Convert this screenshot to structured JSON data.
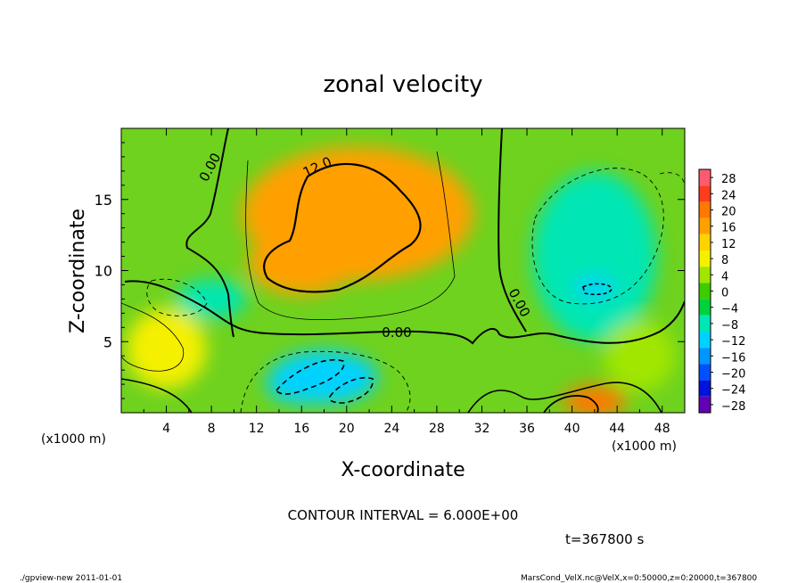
{
  "chart_data": {
    "type": "heatmap",
    "title": "zonal velocity",
    "xlabel": "X-coordinate",
    "ylabel": "Z-coordinate",
    "x_unit_label": "(x1000 m)",
    "x_unit_label_right": "(x1000 m)",
    "xlim": [
      0,
      50
    ],
    "ylim": [
      0,
      20
    ],
    "x_ticks": [
      "4",
      "8",
      "12",
      "16",
      "20",
      "24",
      "28",
      "32",
      "36",
      "40",
      "44",
      "48"
    ],
    "x_tick_values": [
      4,
      8,
      12,
      16,
      20,
      24,
      28,
      32,
      36,
      40,
      44,
      48
    ],
    "y_ticks": [
      "5",
      "10",
      "15"
    ],
    "y_tick_values": [
      5,
      10,
      15
    ],
    "colorbar": {
      "labels": [
        "28",
        "24",
        "20",
        "16",
        "12",
        "8",
        "4",
        "0",
        "−4",
        "−8",
        "−12",
        "−16",
        "−20",
        "−24",
        "−28"
      ],
      "levels": [
        28,
        24,
        20,
        16,
        12,
        8,
        4,
        0,
        -4,
        -8,
        -12,
        -16,
        -20,
        -24,
        -28
      ],
      "colors": [
        "#ff5a6e",
        "#ff3c1e",
        "#ff7800",
        "#ffa000",
        "#ffd200",
        "#f5f000",
        "#a0e600",
        "#3ccd00",
        "#00d23c",
        "#00e6b4",
        "#00d2ff",
        "#0096ff",
        "#0050ff",
        "#0014dc",
        "#6400b4"
      ]
    },
    "contour_labels": [
      "12.0",
      "0.00",
      "0.00",
      "0.00"
    ],
    "features": [
      {
        "x": 21,
        "z": 14,
        "value": 16
      },
      {
        "x": 16,
        "z": 10.5,
        "value": 18
      },
      {
        "x": 42,
        "z": 11,
        "value": -8
      },
      {
        "x": 42,
        "z": 8.8,
        "value": -10
      },
      {
        "x": 18,
        "z": 2.5,
        "value": -12
      },
      {
        "x": 16,
        "z": 2,
        "value": -11
      },
      {
        "x": 4,
        "z": 4.5,
        "value": 10
      },
      {
        "x": 42,
        "z": 0.8,
        "value": 20
      },
      {
        "x": 8,
        "z": 8,
        "value": -6
      },
      {
        "x": 46,
        "z": 4,
        "value": 6
      }
    ],
    "contour_interval_text": "CONTOUR INTERVAL = 6.000E+00",
    "time_text": "t=367800 s",
    "grid": false
  },
  "footer": {
    "left": "./gpview-new   2011-01-01",
    "right": "MarsCond_VelX.nc@VelX,x=0:50000,z=0:20000,t=367800"
  }
}
